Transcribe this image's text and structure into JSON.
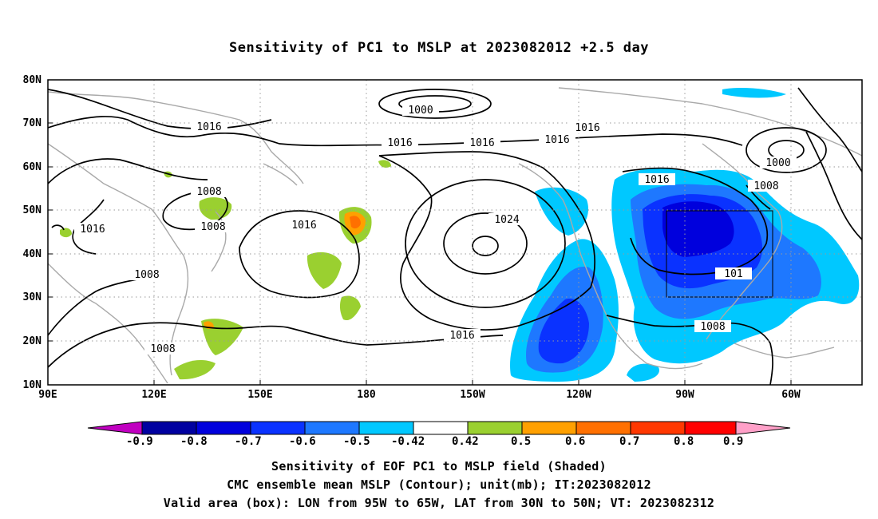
{
  "title": "Sensitivity of PC1 to MSLP at 2023082012 +2.5 day",
  "lat_labels": [
    "80N",
    "70N",
    "60N",
    "50N",
    "40N",
    "30N",
    "20N",
    "10N"
  ],
  "lon_labels": [
    "90E",
    "120E",
    "150E",
    "180",
    "150W",
    "120W",
    "90W",
    "60W"
  ],
  "contour_labels": [
    "1016",
    "1016",
    "1016",
    "1016",
    "1016",
    "1016",
    "1016",
    "1016",
    "1016",
    "1024",
    "1000",
    "1000",
    "1008",
    "1008",
    "1008",
    "1008",
    "1008",
    "1008",
    "101"
  ],
  "colorbar": {
    "labels": [
      "-0.9",
      "-0.8",
      "-0.7",
      "-0.6",
      "-0.5",
      "-0.42",
      "0.42",
      "0.5",
      "0.6",
      "0.7",
      "0.8",
      "0.9"
    ],
    "colors": [
      "#c000c0",
      "#0000a0",
      "#0000dd",
      "#0a32ff",
      "#1e78ff",
      "#00c8ff",
      "#ffffff",
      "#9ad030",
      "#ffa000",
      "#ff7000",
      "#ff3800",
      "#ff0000",
      "#ffa0c8"
    ]
  },
  "captions": [
    "Sensitivity of EOF PC1 to MSLP field (Shaded)",
    "CMC ensemble mean MSLP (Contour); unit(mb); IT:2023082012",
    "Valid area (box): LON from 95W to 65W, LAT from 30N to 50N; VT: 2023082312"
  ]
}
